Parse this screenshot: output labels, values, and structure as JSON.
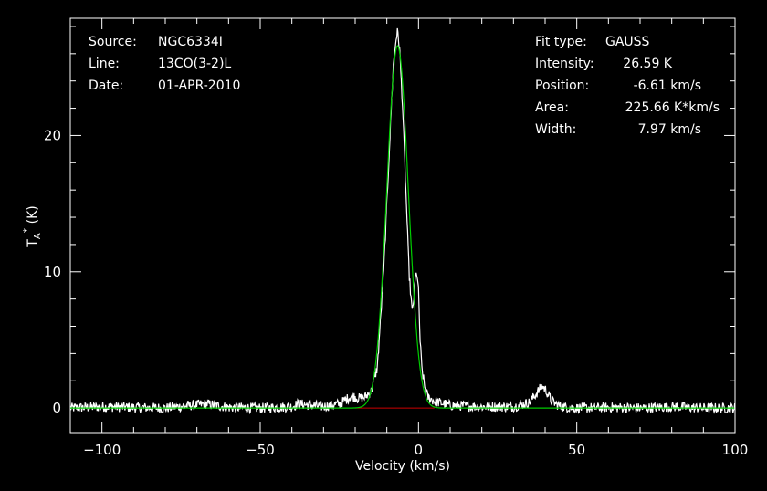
{
  "header_left": {
    "source_label": "Source:",
    "source_value": "NGC6334I",
    "line_label": "Line:",
    "line_value": "13CO(3-2)L",
    "date_label": "Date:",
    "date_value": "01-APR-2010"
  },
  "header_right": {
    "fit_label": "Fit type:",
    "fit_value": "GAUSS",
    "intensity_label": "Intensity:",
    "intensity_value": "26.59 K",
    "position_label": "Position:",
    "position_value": "-6.61 km/s",
    "area_label": "Area:",
    "area_value": "225.66 K*km/s",
    "width_label": "Width:",
    "width_value": "7.97 km/s"
  },
  "colors": {
    "background": "#000000",
    "spectrum": "#ffffff",
    "fit": "#00cc00",
    "baseline": "#cc0000"
  },
  "chart_data": {
    "type": "line",
    "xlabel": "Velocity (km/s)",
    "ylabel": "T_A* (K)",
    "xlim": [
      -110,
      100
    ],
    "ylim": [
      -1.8,
      28.6
    ],
    "xticks": [
      -100,
      -50,
      0,
      50,
      100
    ],
    "yticks": [
      0,
      10,
      20
    ],
    "xtick_labels": [
      "−100",
      "−50",
      "0",
      "50",
      "100"
    ],
    "ytick_labels": [
      "0",
      "10",
      "20"
    ],
    "grid": false,
    "series": [
      {
        "role": "spectrum",
        "x": [
          -110,
          -100,
          -80,
          -67,
          -60,
          -50,
          -40,
          -38,
          -30,
          -25,
          -21,
          -19,
          -17,
          -15,
          -13,
          -11,
          -10,
          -9,
          -8,
          -7,
          -6.6,
          -6,
          -5,
          -4,
          -3,
          -2,
          -1.5,
          -1,
          -0.5,
          0,
          0.5,
          1,
          2,
          3,
          5,
          10,
          20,
          30,
          35,
          37,
          39,
          40,
          41,
          42,
          45,
          50,
          60,
          70,
          80,
          90,
          100
        ],
        "y": [
          0,
          0.1,
          0,
          0.3,
          0.05,
          0,
          0.1,
          0.3,
          0.1,
          0.3,
          0.9,
          0.7,
          0.8,
          1.2,
          3.0,
          10.0,
          15.0,
          20.0,
          25.0,
          27.3,
          27.6,
          26.5,
          22.0,
          16.0,
          10.0,
          7.0,
          8.0,
          9.5,
          10.0,
          8.5,
          5.0,
          3.0,
          1.5,
          0.8,
          0.5,
          0.2,
          0.1,
          0.1,
          0.4,
          1.0,
          1.6,
          1.4,
          1.0,
          0.5,
          0.1,
          0,
          0.05,
          0,
          0.1,
          0,
          0
        ]
      },
      {
        "role": "gaussian-fit",
        "amplitude": 26.59,
        "center": -6.61,
        "fwhm": 7.97,
        "x_range": [
          -110,
          100
        ]
      },
      {
        "role": "baseline",
        "x": [
          -20,
          5
        ],
        "y": [
          0,
          0
        ]
      }
    ]
  }
}
